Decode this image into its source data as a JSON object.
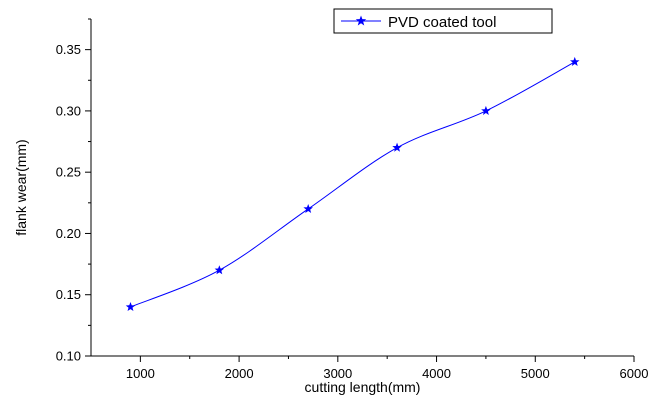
{
  "chart_data": {
    "type": "line",
    "title": "",
    "xlabel": "cutting length(mm)",
    "ylabel": "flank wear(mm)",
    "xlim": [
      500,
      6000
    ],
    "ylim": [
      0.1,
      0.375
    ],
    "x_ticks": [
      1000,
      2000,
      3000,
      4000,
      5000,
      6000
    ],
    "x_tick_labels": [
      "1000",
      "2000",
      "3000",
      "4000",
      "5000",
      "6000"
    ],
    "y_ticks": [
      0.1,
      0.15,
      0.2,
      0.25,
      0.3,
      0.35
    ],
    "y_tick_labels": [
      "0.10",
      "0.15",
      "0.20",
      "0.25",
      "0.30",
      "0.35"
    ],
    "legend_position": "top-right",
    "grid": false,
    "series": [
      {
        "name": "PVD coated tool",
        "color": "#0000ff",
        "marker": "star",
        "smooth": true,
        "x": [
          900,
          1800,
          2700,
          3600,
          4500,
          5400
        ],
        "y": [
          0.14,
          0.17,
          0.22,
          0.27,
          0.3,
          0.34
        ]
      }
    ]
  }
}
